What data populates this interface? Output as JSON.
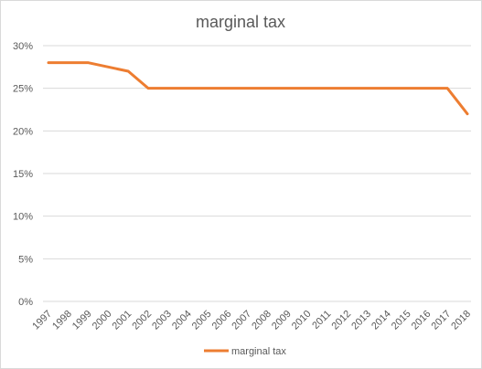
{
  "chart_data": {
    "type": "line",
    "title": "marginal tax",
    "xlabel": "",
    "ylabel": "",
    "categories": [
      "1997",
      "1998",
      "1999",
      "2000",
      "2001",
      "2002",
      "2003",
      "2004",
      "2005",
      "2006",
      "2007",
      "2008",
      "2009",
      "2010",
      "2011",
      "2012",
      "2013",
      "2014",
      "2015",
      "2016",
      "2017",
      "2018"
    ],
    "points": [
      {
        "x": "1997",
        "y": 0.28
      },
      {
        "x": "1999",
        "y": 0.28
      },
      {
        "x": "2001",
        "y": 0.27
      },
      {
        "x": "2002",
        "y": 0.25
      },
      {
        "x": "2017",
        "y": 0.25
      },
      {
        "x": "2018",
        "y": 0.22
      }
    ],
    "series": [
      {
        "name": "marginal tax",
        "color": "#ed7d31"
      }
    ],
    "ylim": [
      0,
      0.3
    ],
    "yticks": [
      {
        "value": 0,
        "label": "0%"
      },
      {
        "value": 0.05,
        "label": "5%"
      },
      {
        "value": 0.1,
        "label": "10%"
      },
      {
        "value": 0.15,
        "label": "15%"
      },
      {
        "value": 0.2,
        "label": "20%"
      },
      {
        "value": 0.25,
        "label": "25%"
      },
      {
        "value": 0.3,
        "label": "30%"
      }
    ],
    "grid": true,
    "legend": "bottom",
    "gridline_color": "#d9d9d9",
    "text_color": "#595959"
  }
}
